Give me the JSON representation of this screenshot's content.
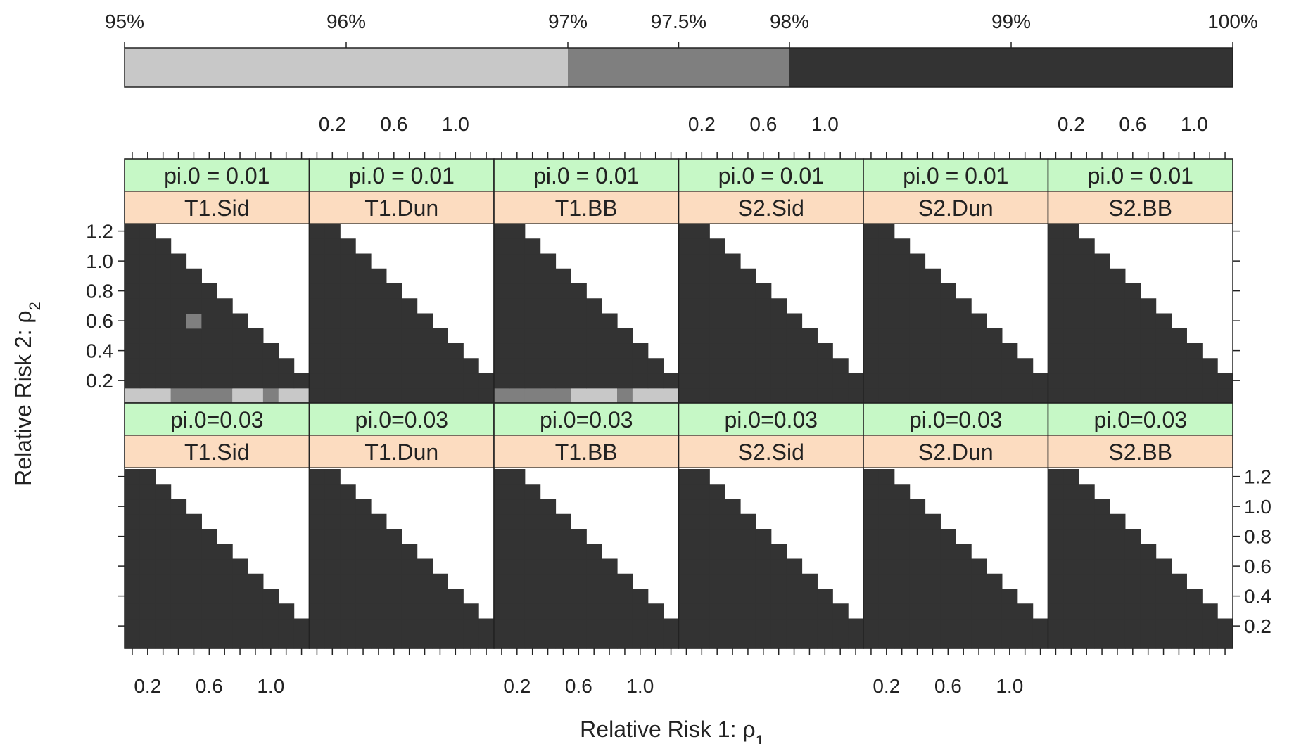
{
  "chart_data": {
    "type": "heatmap",
    "title": "",
    "xlabel": "Relative Risk 1: ρ1",
    "ylabel": "Relative Risk 2: ρ2",
    "colorkey": {
      "ticks": [
        {
          "label": "95%",
          "value": 95
        },
        {
          "label": "96%",
          "value": 96
        },
        {
          "label": "97%",
          "value": 97
        },
        {
          "label": "97.5%",
          "value": 97.5
        },
        {
          "label": "98%",
          "value": 98
        },
        {
          "label": "99%",
          "value": 99
        },
        {
          "label": "100%",
          "value": 100
        }
      ],
      "bands": [
        {
          "from": 95,
          "to": 97,
          "color": "#c8c8c8"
        },
        {
          "from": 97,
          "to": 98,
          "color": "#7f7f7f"
        },
        {
          "from": 98,
          "to": 100,
          "color": "#333333"
        }
      ]
    },
    "x_tick_labels": [
      "0.2",
      "0.6",
      "1.0"
    ],
    "x_ticks": [
      0.2,
      0.6,
      1.0
    ],
    "y_tick_labels": [
      "0.2",
      "0.4",
      "0.6",
      "0.8",
      "1.0",
      "1.2"
    ],
    "y_ticks": [
      0.2,
      0.4,
      0.6,
      0.8,
      1.0,
      1.2
    ],
    "grid_values": [
      0.1,
      0.2,
      0.3,
      0.4,
      0.5,
      0.6,
      0.7,
      0.8,
      0.9,
      1.0,
      1.1,
      1.2
    ],
    "cell_codes": {
      "L": "95-97%",
      "M": "97-98%",
      "D": "98-100%",
      ".": "not computed"
    },
    "strip_colors": {
      "outer": "#c6f8c6",
      "inner": "#fcdcc0"
    },
    "panels": [
      {
        "pi0": "pi.0 = 0.01",
        "test": "T1.Sid",
        "grid": [
          "LLLMMMMLLMLL",
          "DDDDDDDDDDDD",
          "DDDDDDDDDDD.",
          "DDDDDDDDDD..",
          "DDDDDDDDD...",
          "DDDDMDDD....",
          "DDDDDDD.....",
          "DDDDDD......",
          "DDDDD.......",
          "DDDD........",
          "DDD.........",
          "DD.........."
        ]
      },
      {
        "pi0": "pi.0 = 0.01",
        "test": "T1.Dun",
        "grid": [
          "DDDDDDDDDDDD",
          "DDDDDDDDDDDD",
          "DDDDDDDDDDD.",
          "DDDDDDDDDD..",
          "DDDDDDDDD...",
          "DDDDDDDD....",
          "DDDDDDD.....",
          "DDDDDD......",
          "DDDDD.......",
          "DDDD........",
          "DDD.........",
          "DD.........."
        ]
      },
      {
        "pi0": "pi.0 = 0.01",
        "test": "T1.BB",
        "grid": [
          "MMMMMLLLMLLL",
          "DDDDDDDDDDDD",
          "DDDDDDDDDDD.",
          "DDDDDDDDDD..",
          "DDDDDDDDD...",
          "DDDDDDDD....",
          "DDDDDDD.....",
          "DDDDDD......",
          "DDDDD.......",
          "DDDD........",
          "DDD.........",
          "DD.........."
        ]
      },
      {
        "pi0": "pi.0 = 0.01",
        "test": "S2.Sid",
        "grid": [
          "DDDDDDDDDDDD",
          "DDDDDDDDDDDD",
          "DDDDDDDDDDD.",
          "DDDDDDDDDD..",
          "DDDDDDDDD...",
          "DDDDDDDD....",
          "DDDDDDD.....",
          "DDDDDD......",
          "DDDDD.......",
          "DDDD........",
          "DDD.........",
          "DD.........."
        ]
      },
      {
        "pi0": "pi.0 = 0.01",
        "test": "S2.Dun",
        "grid": [
          "DDDDDDDDDDDD",
          "DDDDDDDDDDDD",
          "DDDDDDDDDDD.",
          "DDDDDDDDDD..",
          "DDDDDDDDD...",
          "DDDDDDDD....",
          "DDDDDDD.....",
          "DDDDDD......",
          "DDDDD.......",
          "DDDD........",
          "DDD.........",
          "DD.........."
        ]
      },
      {
        "pi0": "pi.0 = 0.01",
        "test": "S2.BB",
        "grid": [
          "DDDDDDDDDDDD",
          "DDDDDDDDDDDD",
          "DDDDDDDDDDD.",
          "DDDDDDDDDD..",
          "DDDDDDDDD...",
          "DDDDDDDD....",
          "DDDDDDD.....",
          "DDDDDD......",
          "DDDDD.......",
          "DDDD........",
          "DDD.........",
          "DD.........."
        ]
      },
      {
        "pi0": "pi.0=0.03",
        "test": "T1.Sid",
        "grid": [
          "DDDDDDDDDDDD",
          "DDDDDDDDDDDD",
          "DDDDDDDDDDD.",
          "DDDDDDDDDD..",
          "DDDDDDDDD...",
          "DDDDDDDD....",
          "DDDDDDD.....",
          "DDDDDD......",
          "DDDDD.......",
          "DDDD........",
          "DDD.........",
          "DD.........."
        ]
      },
      {
        "pi0": "pi.0=0.03",
        "test": "T1.Dun",
        "grid": [
          "DDDDDDDDDDDD",
          "DDDDDDDDDDDD",
          "DDDDDDDDDDD.",
          "DDDDDDDDDD..",
          "DDDDDDDDD...",
          "DDDDDDDD....",
          "DDDDDDD.....",
          "DDDDDD......",
          "DDDDD.......",
          "DDDD........",
          "DDD.........",
          "DD.........."
        ]
      },
      {
        "pi0": "pi.0=0.03",
        "test": "T1.BB",
        "grid": [
          "DDDDDDDDDDDD",
          "DDDDDDDDDDDD",
          "DDDDDDDDDDD.",
          "DDDDDDDDDD..",
          "DDDDDDDDD...",
          "DDDDDDDD....",
          "DDDDDDD.....",
          "DDDDDD......",
          "DDDDD.......",
          "DDDD........",
          "DDD.........",
          "DD.........."
        ]
      },
      {
        "pi0": "pi.0=0.03",
        "test": "S2.Sid",
        "grid": [
          "DDDDDDDDDDDD",
          "DDDDDDDDDDDD",
          "DDDDDDDDDDD.",
          "DDDDDDDDDD..",
          "DDDDDDDDD...",
          "DDDDDDDD....",
          "DDDDDDD.....",
          "DDDDDD......",
          "DDDDD.......",
          "DDDD........",
          "DDD.........",
          "DD.........."
        ]
      },
      {
        "pi0": "pi.0=0.03",
        "test": "S2.Dun",
        "grid": [
          "DDDDDDDDDDDD",
          "DDDDDDDDDDDD",
          "DDDDDDDDDDD.",
          "DDDDDDDDDD..",
          "DDDDDDDDD...",
          "DDDDDDDD....",
          "DDDDDDD.....",
          "DDDDDD......",
          "DDDDD.......",
          "DDDD........",
          "DDD.........",
          "DD.........."
        ]
      },
      {
        "pi0": "pi.0=0.03",
        "test": "S2.BB",
        "grid": [
          "DDDDDDDDDDDD",
          "DDDDDDDDDDDD",
          "DDDDDDDDDDD.",
          "DDDDDDDDDD..",
          "DDDDDDDDD...",
          "DDDDDDDD....",
          "DDDDDDD.....",
          "DDDDDD......",
          "DDDDD.......",
          "DDDD........",
          "DDD.........",
          "DD.........."
        ]
      }
    ]
  }
}
